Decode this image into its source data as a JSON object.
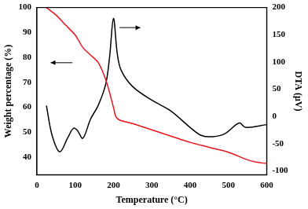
{
  "chart_data": {
    "type": "line",
    "x_label": "Temperature (°C)",
    "y_label": "Weight percentage (%)",
    "y2_label": "DTA (μV)",
    "xlim": [
      0,
      600
    ],
    "xticks": [
      0,
      100,
      200,
      300,
      400,
      500,
      600
    ],
    "ylim": [
      33,
      100
    ],
    "yticks": [
      40,
      50,
      60,
      70,
      80,
      90,
      100
    ],
    "y2lim": [
      -107,
      200
    ],
    "y2ticks": [
      -100,
      -50,
      0,
      50,
      100,
      150,
      200
    ],
    "grid": false,
    "series": [
      {
        "color": "#e8141e",
        "line_style": "solid",
        "x": [
          25,
          50,
          75,
          100,
          120,
          140,
          160,
          180,
          195,
          200,
          210,
          250,
          300,
          350,
          400,
          450,
          500,
          550,
          575,
          600
        ],
        "values": [
          100,
          97,
          93,
          89,
          84,
          81,
          78,
          71,
          63,
          60,
          55.5,
          53.5,
          51,
          48.5,
          46,
          44,
          42,
          39,
          38,
          37.5
        ]
      },
      {
        "color": "#000000",
        "line_style": "solid",
        "axis": "y2",
        "x": [
          25,
          40,
          60,
          80,
          95,
          105,
          120,
          140,
          160,
          180,
          190,
          200,
          210,
          220,
          250,
          300,
          350,
          400,
          430,
          460,
          490,
          520,
          530,
          545,
          600
        ],
        "values": [
          20,
          -35,
          -65,
          -40,
          -22,
          -25,
          -40,
          -5,
          20,
          60,
          110,
          180,
          115,
          85,
          55,
          30,
          10,
          -20,
          -35,
          -37,
          -32,
          -15,
          -12,
          -20,
          -15
        ]
      }
    ]
  }
}
